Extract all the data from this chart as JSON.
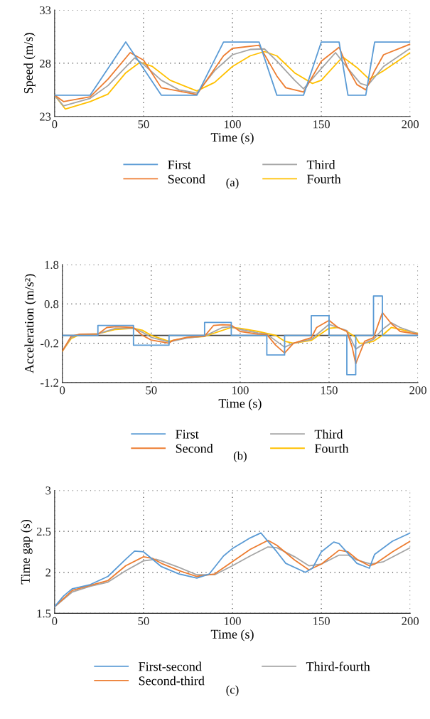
{
  "chart_data": [
    {
      "type": "line",
      "xlabel": "Time (s)",
      "ylabel": "Speed (m/s)",
      "xlim": [
        0,
        200
      ],
      "xticks": [
        0,
        50,
        100,
        150,
        200
      ],
      "ylim": [
        23,
        33
      ],
      "yticks": [
        23,
        28,
        33
      ],
      "grid": true,
      "legend": "bottom",
      "annotations": [
        "(a)"
      ],
      "series": [
        {
          "name": "First",
          "color": "#5b9bd5",
          "x": [
            0,
            20,
            40,
            60,
            80,
            95,
            115,
            125,
            140,
            150,
            160,
            165,
            175,
            180,
            200
          ],
          "values": [
            25,
            25,
            30,
            25,
            25,
            30,
            30,
            25,
            25,
            30,
            30,
            25,
            25,
            30,
            30
          ]
        },
        {
          "name": "Second",
          "color": "#ed7d31",
          "x": [
            0,
            5,
            20,
            30,
            42.5,
            50,
            60,
            80,
            95,
            100,
            115,
            125,
            130,
            140,
            150,
            160,
            165,
            170,
            175,
            180,
            185,
            200
          ],
          "values": [
            25,
            24.4,
            24.85,
            26.5,
            29.0,
            28.3,
            25.7,
            25.06,
            28.7,
            29.4,
            29.7,
            26.8,
            25.7,
            25.3,
            28.2,
            29.5,
            27.5,
            26.0,
            25.5,
            27.3,
            28.8,
            29.8
          ]
        },
        {
          "name": "Third",
          "color": "#a5a5a5",
          "x": [
            0,
            5,
            20,
            30,
            45,
            50,
            60,
            70,
            80,
            90,
            100,
            110,
            118,
            125,
            135,
            140,
            150,
            158,
            165,
            172,
            176,
            185,
            200
          ],
          "values": [
            25,
            24.0,
            24.7,
            25.9,
            28.5,
            27.9,
            26.4,
            25.5,
            25.2,
            27.3,
            28.8,
            29.3,
            29.35,
            28.2,
            26.4,
            25.6,
            27.5,
            29.0,
            27.5,
            26.1,
            25.9,
            27.7,
            29.4
          ]
        },
        {
          "name": "Fourth",
          "color": "#ffc000",
          "x": [
            0,
            6,
            20,
            30,
            40,
            48,
            55,
            65,
            80,
            90,
            100,
            110,
            118,
            125,
            135,
            145,
            150,
            162,
            170,
            177,
            185,
            200
          ],
          "values": [
            25,
            23.7,
            24.4,
            25.1,
            27.1,
            28.1,
            27.7,
            26.4,
            25.4,
            26.2,
            27.7,
            28.7,
            29.1,
            28.7,
            27.1,
            26.1,
            26.4,
            28.6,
            27.6,
            26.5,
            27.3,
            29.0
          ]
        }
      ]
    },
    {
      "type": "line",
      "xlabel": "Time (s)",
      "ylabel": "Acceleration (m/s²)",
      "xlim": [
        0,
        200
      ],
      "xticks": [
        0,
        50,
        100,
        150,
        200
      ],
      "ylim": [
        -1.2,
        1.8
      ],
      "yticks": [
        -1.2,
        -0.2,
        0.8,
        1.8
      ],
      "grid": true,
      "legend": "bottom",
      "annotations": [
        "(b)"
      ],
      "ref_lines": [
        {
          "axis": "y",
          "value": 0,
          "color": "#404040"
        }
      ],
      "series": [
        {
          "name": "First",
          "color": "#5b9bd5",
          "x": [
            0,
            20,
            20,
            40,
            40,
            60,
            60,
            80,
            80,
            95,
            95,
            115,
            115,
            125,
            125,
            140,
            140,
            150,
            150,
            160,
            160,
            165,
            165,
            175,
            175,
            180,
            180,
            200
          ],
          "values": [
            0,
            0,
            0.25,
            0.25,
            -0.25,
            -0.25,
            0,
            0,
            0.33,
            0.33,
            0,
            0,
            -0.5,
            -0.5,
            0,
            0,
            0.5,
            0.5,
            0,
            0,
            -1.0,
            -1.0,
            0,
            0,
            1.0,
            1.0,
            0,
            0
          ]
        },
        {
          "name": "Second",
          "color": "#ed7d31",
          "x": [
            0,
            5,
            10,
            20,
            25,
            30,
            40,
            45,
            50,
            60,
            62,
            70,
            80,
            85,
            90,
            95,
            100,
            110,
            115,
            120,
            125,
            130,
            140,
            143,
            150,
            155,
            160,
            163,
            165,
            170,
            175,
            180,
            185,
            190,
            200
          ],
          "values": [
            -0.4,
            -0.02,
            0.03,
            0.03,
            0.2,
            0.22,
            0.2,
            0.0,
            -0.12,
            -0.2,
            -0.13,
            -0.05,
            -0.02,
            0.25,
            0.27,
            0.26,
            0.1,
            0.03,
            0.02,
            -0.25,
            -0.45,
            -0.2,
            -0.06,
            0.2,
            0.38,
            0.2,
            0.1,
            -0.3,
            -0.72,
            -0.15,
            -0.06,
            0.58,
            0.3,
            0.1,
            0.03
          ]
        },
        {
          "name": "Third",
          "color": "#a5a5a5",
          "x": [
            0,
            5,
            10,
            20,
            30,
            40,
            45,
            50,
            60,
            70,
            80,
            90,
            95,
            100,
            110,
            115,
            125,
            130,
            140,
            150,
            155,
            160,
            165,
            170,
            175,
            180,
            185,
            190,
            200
          ],
          "values": [
            -0.4,
            -0.05,
            0.03,
            0.04,
            0.18,
            0.18,
            0.08,
            -0.05,
            -0.17,
            -0.07,
            -0.02,
            0.2,
            0.22,
            0.15,
            0.06,
            0.03,
            -0.3,
            -0.2,
            -0.1,
            0.28,
            0.2,
            0.12,
            -0.35,
            -0.2,
            -0.1,
            0.15,
            0.32,
            0.2,
            0.04
          ]
        },
        {
          "name": "Fourth",
          "color": "#ffc000",
          "x": [
            0,
            5,
            10,
            20,
            30,
            40,
            45,
            50,
            60,
            70,
            80,
            85,
            95,
            100,
            110,
            120,
            125,
            130,
            140,
            150,
            155,
            160,
            165,
            167,
            170,
            175,
            180,
            185,
            190,
            200
          ],
          "values": [
            -0.4,
            -0.08,
            0.02,
            0.04,
            0.15,
            0.18,
            0.13,
            0.0,
            -0.15,
            -0.06,
            -0.03,
            0.05,
            0.2,
            0.18,
            0.1,
            0.0,
            -0.15,
            -0.2,
            -0.13,
            0.18,
            0.2,
            0.1,
            -0.05,
            -0.2,
            -0.2,
            -0.15,
            0.0,
            0.2,
            0.15,
            0.05
          ]
        }
      ]
    },
    {
      "type": "line",
      "xlabel": "Time (s)",
      "ylabel": "Time gap (s)",
      "xlim": [
        0,
        200
      ],
      "xticks": [
        0,
        50,
        100,
        150,
        200
      ],
      "ylim": [
        1.5,
        3
      ],
      "yticks": [
        1.5,
        2,
        2.5,
        3
      ],
      "grid": true,
      "legend": "bottom",
      "annotations": [
        "(c)"
      ],
      "series": [
        {
          "name": "First-second",
          "color": "#5b9bd5",
          "x": [
            0,
            5,
            10,
            20,
            30,
            40,
            45,
            50,
            55,
            60,
            70,
            80,
            87,
            95,
            100,
            110,
            116,
            125,
            130,
            141,
            145,
            150,
            157,
            160,
            170,
            177,
            180,
            190,
            200
          ],
          "values": [
            1.58,
            1.71,
            1.8,
            1.85,
            1.95,
            2.16,
            2.26,
            2.25,
            2.16,
            2.07,
            1.98,
            1.93,
            1.98,
            2.2,
            2.29,
            2.42,
            2.48,
            2.25,
            2.11,
            2.0,
            2.05,
            2.25,
            2.37,
            2.35,
            2.11,
            2.05,
            2.22,
            2.38,
            2.48
          ]
        },
        {
          "name": "Second-third",
          "color": "#ed7d31",
          "x": [
            0,
            10,
            20,
            30,
            40,
            50,
            55,
            60,
            70,
            80,
            90,
            100,
            110,
            120,
            125,
            135,
            143,
            150,
            160,
            165,
            170,
            177,
            180,
            190,
            200
          ],
          "values": [
            1.58,
            1.78,
            1.84,
            1.9,
            2.08,
            2.19,
            2.17,
            2.11,
            2.02,
            1.95,
            1.98,
            2.13,
            2.28,
            2.39,
            2.33,
            2.15,
            2.03,
            2.1,
            2.27,
            2.25,
            2.16,
            2.08,
            2.1,
            2.25,
            2.38
          ]
        },
        {
          "name": "Third-fourth",
          "color": "#a5a5a5",
          "x": [
            0,
            10,
            20,
            30,
            40,
            50,
            57,
            60,
            70,
            80,
            90,
            100,
            110,
            120,
            125,
            135,
            143,
            150,
            160,
            165,
            170,
            178,
            185,
            200
          ],
          "values": [
            1.58,
            1.76,
            1.83,
            1.88,
            2.02,
            2.14,
            2.16,
            2.14,
            2.06,
            1.97,
            1.97,
            2.08,
            2.2,
            2.31,
            2.3,
            2.19,
            2.08,
            2.1,
            2.21,
            2.21,
            2.15,
            2.1,
            2.13,
            2.3
          ]
        }
      ]
    }
  ]
}
